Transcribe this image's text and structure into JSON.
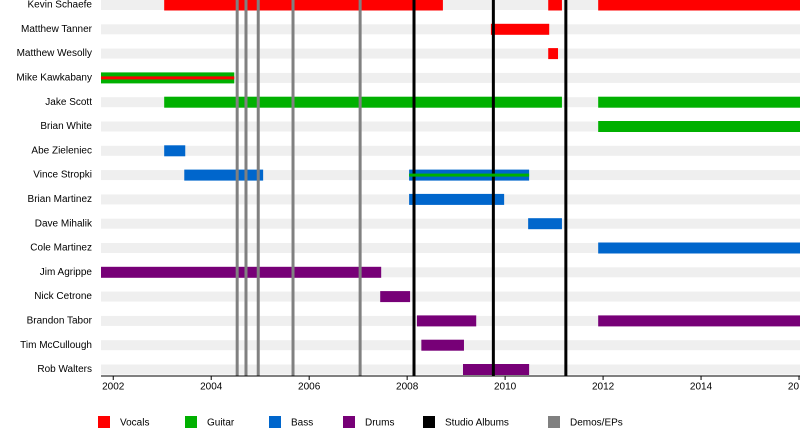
{
  "chart_data": {
    "type": "timeline",
    "categories": [
      "Kevin Schaefe",
      "Matthew Tanner",
      "Matthew Wesolly",
      "Mike Kawkabany",
      "Jake Scott",
      "Brian White",
      "Abe Zieleniec",
      "Vince Stropki",
      "Brian Martinez",
      "Dave Mihalik",
      "Cole Martinez",
      "Jim Agrippe",
      "Nick Cetrone",
      "Brandon Tabor",
      "Tim McCullough",
      "Rob Walters"
    ],
    "series": [
      {
        "name": "Vocals",
        "color": "#ff0000",
        "values": [
          [
            [
              2003.04,
              2008.73
            ],
            [
              2010.88,
              2011.16
            ],
            [
              2011.9,
              2016.02
            ]
          ],
          [
            [
              2009.71,
              2010.9
            ]
          ],
          [
            [
              2010.88,
              2011.08
            ]
          ],
          [
            [
              2001.75,
              2004.47
            ]
          ],
          [],
          [],
          [],
          [],
          [],
          [],
          [],
          [],
          [],
          [],
          [],
          []
        ]
      },
      {
        "name": "Guitar",
        "color": "#00b000",
        "values": [
          [],
          [],
          [],
          [
            [
              2001.75,
              2004.47
            ]
          ],
          [
            [
              2003.04,
              2011.16
            ],
            [
              2011.9,
              2016.02
            ]
          ],
          [
            [
              2011.9,
              2016.02
            ]
          ],
          [],
          [
            [
              2008.04,
              2010.49
            ]
          ],
          [],
          [],
          [],
          [],
          [],
          [],
          [],
          []
        ]
      },
      {
        "name": "Bass",
        "color": "#0066cc",
        "values": [
          [],
          [],
          [],
          [],
          [],
          [],
          [
            [
              2003.04,
              2003.47
            ]
          ],
          [
            [
              2003.45,
              2005.06
            ],
            [
              2008.04,
              2010.49
            ]
          ],
          [
            [
              2008.04,
              2009.98
            ]
          ],
          [
            [
              2010.47,
              2011.16
            ]
          ],
          [
            [
              2011.9,
              2016.02
            ]
          ],
          [],
          [],
          [],
          [],
          []
        ]
      },
      {
        "name": "Drums",
        "color": "#770077",
        "values": [
          [],
          [],
          [],
          [],
          [],
          [],
          [],
          [],
          [],
          [],
          [],
          [
            [
              2001.75,
              2007.47
            ]
          ],
          [
            [
              2007.45,
              2008.06
            ]
          ],
          [
            [
              2008.2,
              2009.41
            ],
            [
              2011.9,
              2016.02
            ]
          ],
          [
            [
              2008.29,
              2009.16
            ]
          ],
          [
            [
              2009.14,
              2010.49
            ]
          ]
        ]
      }
    ],
    "lines": [
      {
        "name": "Studio Albums",
        "color": "#000000",
        "values": [
          2008.14,
          2009.76,
          2011.24
        ]
      },
      {
        "name": "Demos/EPs",
        "color": "#808080",
        "values": [
          2004.53,
          2004.71,
          2004.96,
          2005.67,
          2007.04
        ]
      }
    ],
    "xlim": [
      2001.75,
      2016.02
    ],
    "xticks": [
      2002,
      2004,
      2006,
      2008,
      2010,
      2012,
      2014,
      {
        "value": 2016,
        "label": "20"
      }
    ]
  }
}
